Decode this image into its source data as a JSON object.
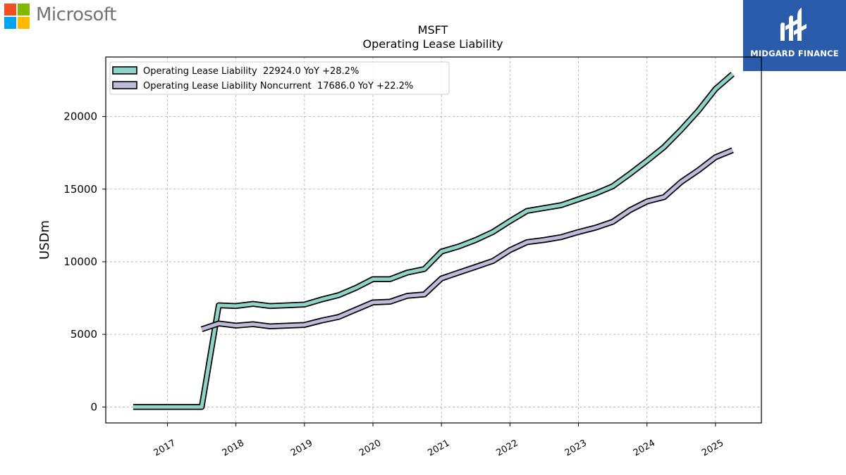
{
  "header": {
    "company_logo_text": "Microsoft",
    "company_logo_colors": [
      "#f25022",
      "#7fba00",
      "#00a4ef",
      "#ffb900"
    ],
    "publisher_logo_text": "MIDGARD FINANCE",
    "publisher_brand_color": "#2b5bab"
  },
  "chart_data": {
    "type": "line",
    "title": "MSFT",
    "subtitle": "Operating Lease Liability",
    "ylabel": "USDm",
    "xlabel": "",
    "ylim": [
      -1100,
      24100
    ],
    "xlim": [
      2016.1,
      2025.67
    ],
    "yticks": [
      0,
      5000,
      10000,
      15000,
      20000
    ],
    "xticks": [
      2017,
      2018,
      2019,
      2020,
      2021,
      2022,
      2023,
      2024,
      2025
    ],
    "grid": true,
    "legend_position": "upper-left",
    "series": [
      {
        "name": "Operating Lease Liability",
        "legend_label": "Operating Lease Liability  22924.0 YoY +28.2%",
        "color": "#8dd3c7",
        "x": [
          2016.5,
          2016.75,
          2017.0,
          2017.25,
          2017.5,
          2017.75,
          2018.0,
          2018.25,
          2018.5,
          2018.75,
          2019.0,
          2019.25,
          2019.5,
          2019.75,
          2020.0,
          2020.25,
          2020.5,
          2020.75,
          2021.0,
          2021.25,
          2021.5,
          2021.75,
          2022.0,
          2022.25,
          2022.5,
          2022.75,
          2023.0,
          2023.25,
          2023.5,
          2023.75,
          2024.0,
          2024.25,
          2024.5,
          2024.75,
          2025.0,
          2025.25
        ],
        "values": [
          0,
          0,
          0,
          0,
          0,
          7000,
          6950,
          7100,
          6950,
          7000,
          7050,
          7400,
          7700,
          8200,
          8800,
          8800,
          9250,
          9500,
          10700,
          11050,
          11500,
          12050,
          12800,
          13500,
          13700,
          13900,
          14300,
          14700,
          15200,
          16050,
          16950,
          17900,
          19100,
          20400,
          21900,
          22924
        ]
      },
      {
        "name": "Operating Lease Liability Noncurrent",
        "legend_label": "Operating Lease Liability Noncurrent  17686.0 YoY +22.2%",
        "color": "#bebada",
        "x": [
          2017.5,
          2017.75,
          2018.0,
          2018.25,
          2018.5,
          2018.75,
          2019.0,
          2019.25,
          2019.5,
          2019.75,
          2020.0,
          2020.25,
          2020.5,
          2020.75,
          2021.0,
          2021.25,
          2021.5,
          2021.75,
          2022.0,
          2022.25,
          2022.5,
          2022.75,
          2023.0,
          2023.25,
          2023.5,
          2023.75,
          2024.0,
          2024.25,
          2024.5,
          2024.75,
          2025.0,
          2025.25
        ],
        "values": [
          5350,
          5750,
          5600,
          5700,
          5550,
          5600,
          5650,
          5950,
          6200,
          6700,
          7200,
          7250,
          7650,
          7750,
          8850,
          9250,
          9650,
          10050,
          10800,
          11350,
          11500,
          11700,
          12050,
          12350,
          12750,
          13550,
          14150,
          14450,
          15500,
          16300,
          17200,
          17686
        ]
      }
    ]
  }
}
